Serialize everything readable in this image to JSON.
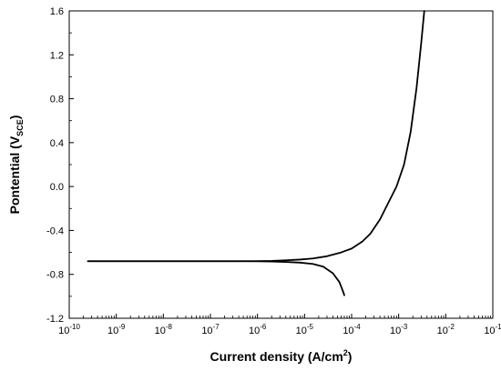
{
  "chart_data": {
    "type": "line",
    "x_scale": "log",
    "xlim": [
      1e-10,
      0.1
    ],
    "ylim": [
      -1.2,
      1.6
    ],
    "xlabel": {
      "prefix": "Current density (A/cm",
      "superscript": "2",
      "suffix": ")"
    },
    "ylabel": {
      "prefix": "Pontential (V",
      "subscript": "SCE",
      "suffix": ")"
    },
    "x_ticks": [
      {
        "base": "10",
        "exp": "-10"
      },
      {
        "base": "10",
        "exp": "-9"
      },
      {
        "base": "10",
        "exp": "-8"
      },
      {
        "base": "10",
        "exp": "-7"
      },
      {
        "base": "10",
        "exp": "-6"
      },
      {
        "base": "10",
        "exp": "-5"
      },
      {
        "base": "10",
        "exp": "-4"
      },
      {
        "base": "10",
        "exp": "-3"
      },
      {
        "base": "10",
        "exp": "-2"
      },
      {
        "base": "10",
        "exp": "-1"
      }
    ],
    "y_ticks": [
      "-1.2",
      "-0.8",
      "-0.4",
      "0.0",
      "0.4",
      "0.8",
      "1.2",
      "1.6"
    ],
    "y_tick_values": [
      -1.2,
      -0.8,
      -0.4,
      0.0,
      0.4,
      0.8,
      1.2,
      1.6
    ],
    "series": [
      {
        "segment": "anodic",
        "x": [
          2.5e-10,
          1e-09,
          1e-08,
          1e-07,
          5e-07,
          1e-06,
          2e-06,
          4e-06,
          8e-06,
          1.5e-05,
          3e-05,
          6e-05,
          0.0001,
          0.00017,
          0.00025,
          0.0004,
          0.0006,
          0.0009,
          0.0013,
          0.0018,
          0.0024,
          0.003,
          0.0035
        ],
        "y": [
          -0.68,
          -0.68,
          -0.68,
          -0.68,
          -0.68,
          -0.679,
          -0.677,
          -0.672,
          -0.665,
          -0.655,
          -0.635,
          -0.6,
          -0.565,
          -0.5,
          -0.43,
          -0.3,
          -0.15,
          0.0,
          0.2,
          0.5,
          0.9,
          1.3,
          1.6
        ]
      },
      {
        "segment": "cathodic",
        "x": [
          2.5e-10,
          1e-09,
          1e-08,
          1e-07,
          5e-07,
          1e-06,
          2e-06,
          4e-06,
          8e-06,
          1.5e-05,
          2.5e-05,
          4e-05,
          5.5e-05,
          6.5e-05,
          7e-05
        ],
        "y": [
          -0.68,
          -0.68,
          -0.68,
          -0.68,
          -0.68,
          -0.681,
          -0.683,
          -0.687,
          -0.693,
          -0.705,
          -0.73,
          -0.79,
          -0.87,
          -0.95,
          -0.99
        ]
      }
    ],
    "grid": false,
    "colors": {
      "line": "#000000",
      "axis": "#000000",
      "background": "#ffffff"
    }
  }
}
